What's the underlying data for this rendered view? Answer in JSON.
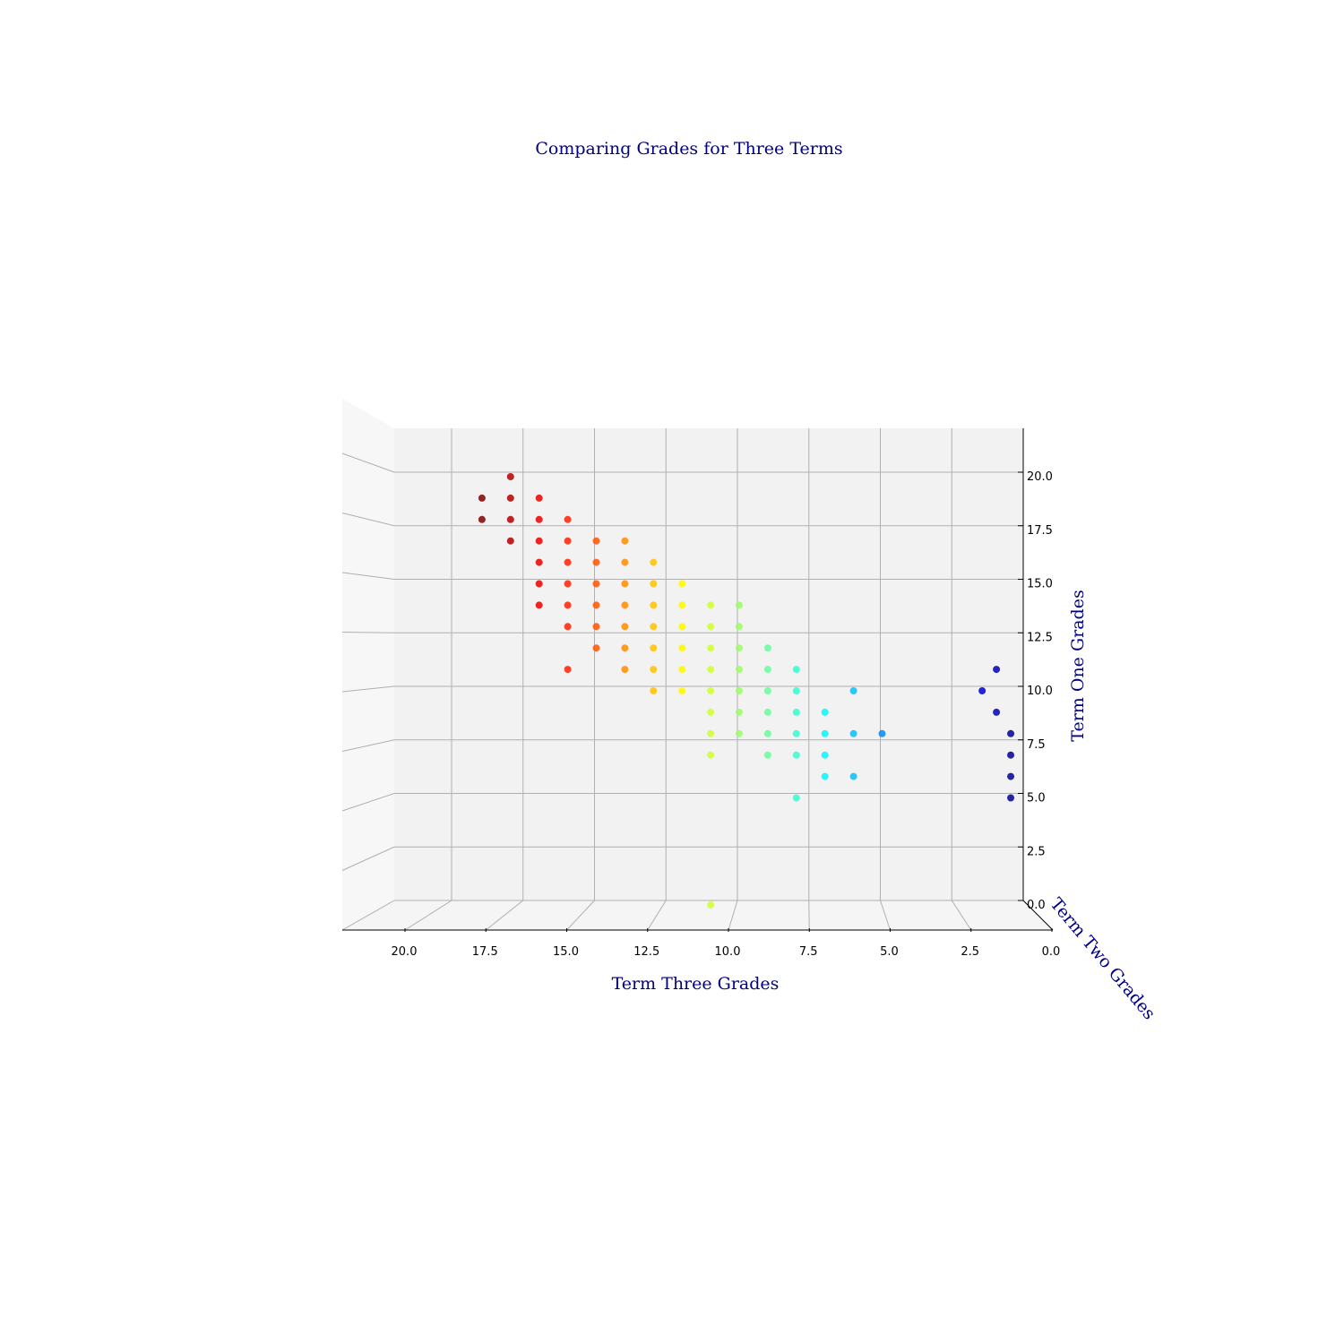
{
  "chart_data": {
    "type": "scatter",
    "title": "Comparing Grades for Three Terms",
    "xlabel": "Term Three Grades",
    "ylabel": "Term Two Grades",
    "zlabel": "Term One Grades",
    "xlim": [
      0,
      22
    ],
    "zlim": [
      0,
      22
    ],
    "x_ticks": [
      "20.0",
      "17.5",
      "15.0",
      "12.5",
      "10.0",
      "7.5",
      "5.0",
      "2.5",
      "0.0"
    ],
    "z_ticks": [
      "0.0",
      "2.5",
      "5.0",
      "7.5",
      "10.0",
      "12.5",
      "15.0",
      "17.5",
      "20.0"
    ],
    "colormap": "jet",
    "grid": true,
    "points": [
      {
        "x": 18,
        "z": 20
      },
      {
        "x": 19,
        "z": 19
      },
      {
        "x": 18,
        "z": 19
      },
      {
        "x": 17,
        "z": 19
      },
      {
        "x": 19,
        "z": 18
      },
      {
        "x": 18,
        "z": 18
      },
      {
        "x": 17,
        "z": 18
      },
      {
        "x": 16,
        "z": 18
      },
      {
        "x": 18,
        "z": 17
      },
      {
        "x": 17,
        "z": 17
      },
      {
        "x": 16,
        "z": 17
      },
      {
        "x": 15,
        "z": 17
      },
      {
        "x": 14,
        "z": 17
      },
      {
        "x": 17,
        "z": 16
      },
      {
        "x": 16,
        "z": 16
      },
      {
        "x": 15,
        "z": 16
      },
      {
        "x": 14,
        "z": 16
      },
      {
        "x": 13,
        "z": 16
      },
      {
        "x": 17,
        "z": 15
      },
      {
        "x": 16,
        "z": 15
      },
      {
        "x": 15,
        "z": 15
      },
      {
        "x": 14,
        "z": 15
      },
      {
        "x": 13,
        "z": 15
      },
      {
        "x": 12,
        "z": 15
      },
      {
        "x": 17,
        "z": 14
      },
      {
        "x": 16,
        "z": 14
      },
      {
        "x": 15,
        "z": 14
      },
      {
        "x": 14,
        "z": 14
      },
      {
        "x": 13,
        "z": 14
      },
      {
        "x": 12,
        "z": 14
      },
      {
        "x": 11,
        "z": 14
      },
      {
        "x": 10,
        "z": 14
      },
      {
        "x": 16,
        "z": 13
      },
      {
        "x": 15,
        "z": 13
      },
      {
        "x": 14,
        "z": 13
      },
      {
        "x": 13,
        "z": 13
      },
      {
        "x": 12,
        "z": 13
      },
      {
        "x": 11,
        "z": 13
      },
      {
        "x": 10,
        "z": 13
      },
      {
        "x": 15,
        "z": 12
      },
      {
        "x": 14,
        "z": 12
      },
      {
        "x": 13,
        "z": 12
      },
      {
        "x": 12,
        "z": 12
      },
      {
        "x": 11,
        "z": 12
      },
      {
        "x": 10,
        "z": 12
      },
      {
        "x": 9,
        "z": 12
      },
      {
        "x": 16,
        "z": 11
      },
      {
        "x": 14,
        "z": 11
      },
      {
        "x": 13,
        "z": 11
      },
      {
        "x": 12,
        "z": 11
      },
      {
        "x": 11,
        "z": 11
      },
      {
        "x": 10,
        "z": 11
      },
      {
        "x": 9,
        "z": 11
      },
      {
        "x": 8,
        "z": 11
      },
      {
        "x": 13,
        "z": 10
      },
      {
        "x": 12,
        "z": 10
      },
      {
        "x": 11,
        "z": 10
      },
      {
        "x": 10,
        "z": 10
      },
      {
        "x": 9,
        "z": 10
      },
      {
        "x": 8,
        "z": 10
      },
      {
        "x": 6,
        "z": 10
      },
      {
        "x": 11,
        "z": 9
      },
      {
        "x": 10,
        "z": 9
      },
      {
        "x": 9,
        "z": 9
      },
      {
        "x": 8,
        "z": 9
      },
      {
        "x": 7,
        "z": 9
      },
      {
        "x": 11,
        "z": 8
      },
      {
        "x": 10,
        "z": 8
      },
      {
        "x": 9,
        "z": 8
      },
      {
        "x": 8,
        "z": 8
      },
      {
        "x": 7,
        "z": 8
      },
      {
        "x": 6,
        "z": 8
      },
      {
        "x": 5,
        "z": 8
      },
      {
        "x": 11,
        "z": 7
      },
      {
        "x": 9,
        "z": 7
      },
      {
        "x": 8,
        "z": 7
      },
      {
        "x": 7,
        "z": 7
      },
      {
        "x": 7,
        "z": 6
      },
      {
        "x": 6,
        "z": 6
      },
      {
        "x": 8,
        "z": 5
      },
      {
        "x": 11,
        "z": 0
      },
      {
        "x": 1.5,
        "z": 10
      },
      {
        "x": 1,
        "z": 11
      },
      {
        "x": 1,
        "z": 9
      },
      {
        "x": 0.5,
        "z": 8
      },
      {
        "x": 0.5,
        "z": 7
      },
      {
        "x": 0.5,
        "z": 6
      },
      {
        "x": 0.5,
        "z": 5
      }
    ]
  }
}
